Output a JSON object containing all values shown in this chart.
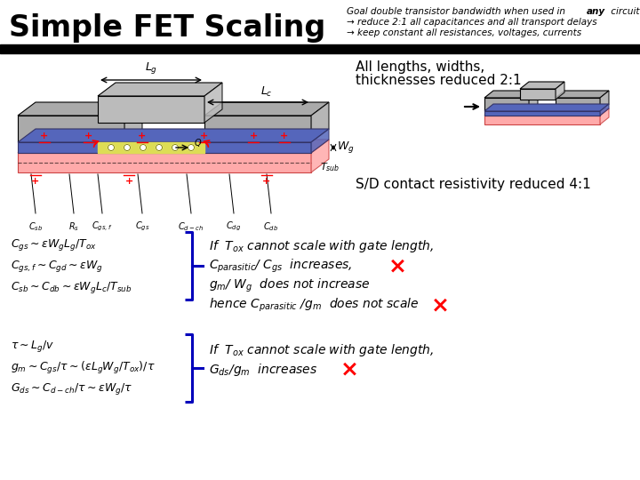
{
  "title_left": "Simple FET Scaling",
  "bg_color": "#ffffff",
  "blue_color": "#0000bb",
  "red_color": "#cc0000",
  "header_bar_color": "#111111",
  "eq1": "$C_{gs} \\sim \\varepsilon W_g L_g / T_{ox}$",
  "eq2": "$C_{gs,f} \\sim C_{gd} \\sim \\varepsilon W_g$",
  "eq3": "$C_{sb} \\sim C_{db} \\sim \\varepsilon W_g L_c / T_{sub}$",
  "eq4": "$\\tau \\sim L_g / v$",
  "eq5": "$g_m \\sim C_{gs} / \\tau \\sim (\\varepsilon L_g W_g / T_{ox}) / \\tau$",
  "eq6": "$G_{ds} \\sim C_{d-ch} / \\tau \\sim \\varepsilon W_g / \\tau$",
  "right_text1_line1": "All lengths, widths,",
  "right_text1_line2": "thicknesses reduced 2:1",
  "right_text2": "S/D contact resistivity reduced 4:1",
  "note1_l1": "If  $T_{ox}$ cannot scale with gate length,",
  "note1_l2": "$C_{parasitic}$/ $C_{gs}$  increases,",
  "note1_l3": "$g_m$/ $W_g$  does not increase",
  "note1_l4": "hence $C_{parasitic}$ /$g_m$  does not scale",
  "note2_l1": "If  $T_{ox}$ cannot scale with gate length,",
  "note2_l2": "$G_{ds}$/$g_m$  increases"
}
